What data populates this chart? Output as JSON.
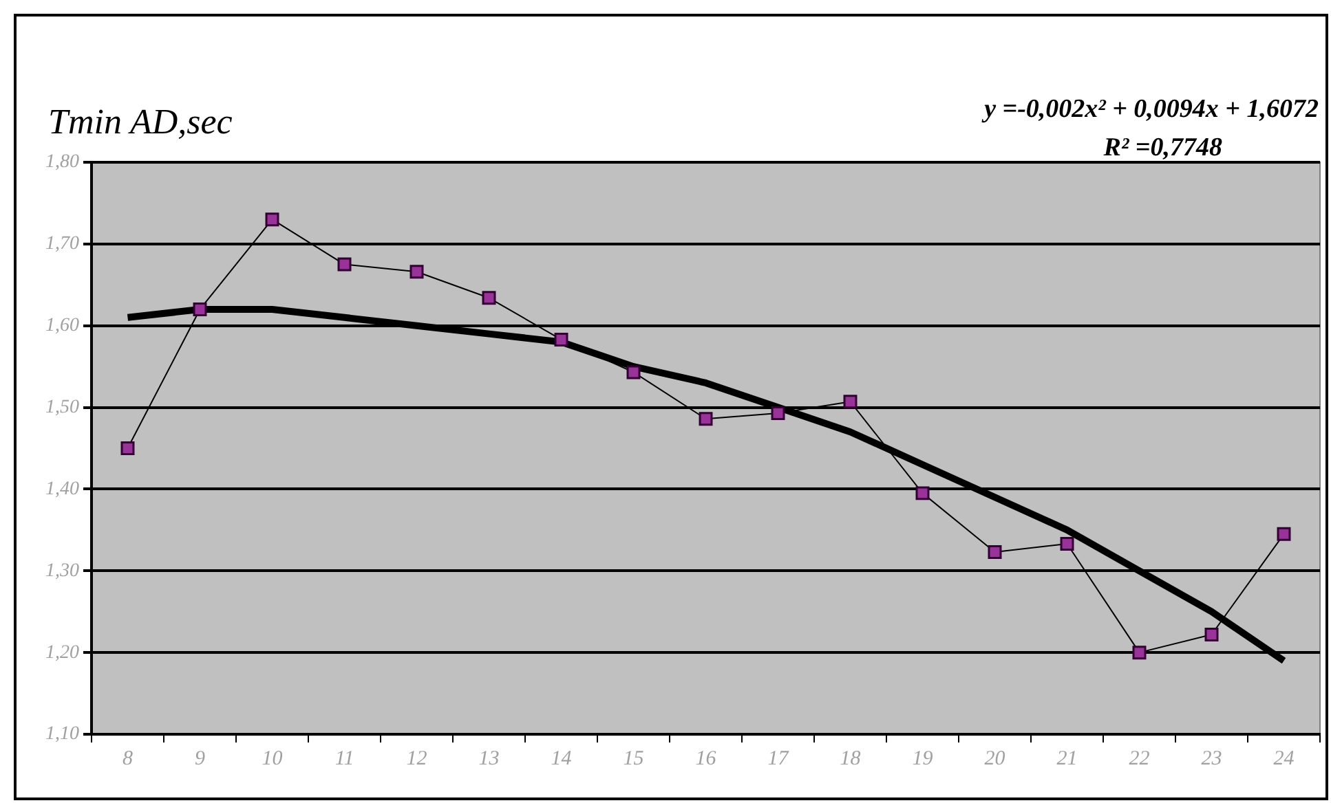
{
  "chart_data": {
    "type": "line",
    "title": "Tmin AD,sec",
    "annotations": [
      "y =-0,002x² + 0,0094x + 1,6072",
      "R² =0,7748"
    ],
    "categories": [
      "8",
      "9",
      "10",
      "11",
      "12",
      "13",
      "14",
      "15",
      "16",
      "17",
      "18",
      "19",
      "20",
      "21",
      "22",
      "23",
      "24"
    ],
    "series": [
      {
        "color": "#993399",
        "marker": "square",
        "values": [
          1.45,
          1.62,
          1.73,
          1.675,
          1.666,
          1.634,
          1.583,
          1.543,
          1.486,
          1.493,
          1.507,
          1.395,
          1.323,
          1.333,
          1.2,
          1.222,
          1.345
        ]
      },
      {
        "type": "line",
        "color": "#000000",
        "marker": "none",
        "values": [
          1.61,
          1.62,
          1.62,
          1.61,
          1.6,
          1.59,
          1.58,
          1.55,
          1.53,
          1.5,
          1.47,
          1.43,
          1.39,
          1.35,
          1.3,
          1.25,
          1.19
        ]
      }
    ],
    "ylim": [
      1.1,
      1.8
    ],
    "yticks": [
      {
        "value": 1.1,
        "label": "1,10"
      },
      {
        "value": 1.2,
        "label": "1,20"
      },
      {
        "value": 1.3,
        "label": "1,30"
      },
      {
        "value": 1.4,
        "label": "1,40"
      },
      {
        "value": 1.5,
        "label": "1,50"
      },
      {
        "value": 1.6,
        "label": "1,60"
      },
      {
        "value": 1.7,
        "label": "1,70"
      },
      {
        "value": 1.8,
        "label": "1,80"
      }
    ],
    "grid": "y",
    "legend": false,
    "line_style": "solid"
  }
}
